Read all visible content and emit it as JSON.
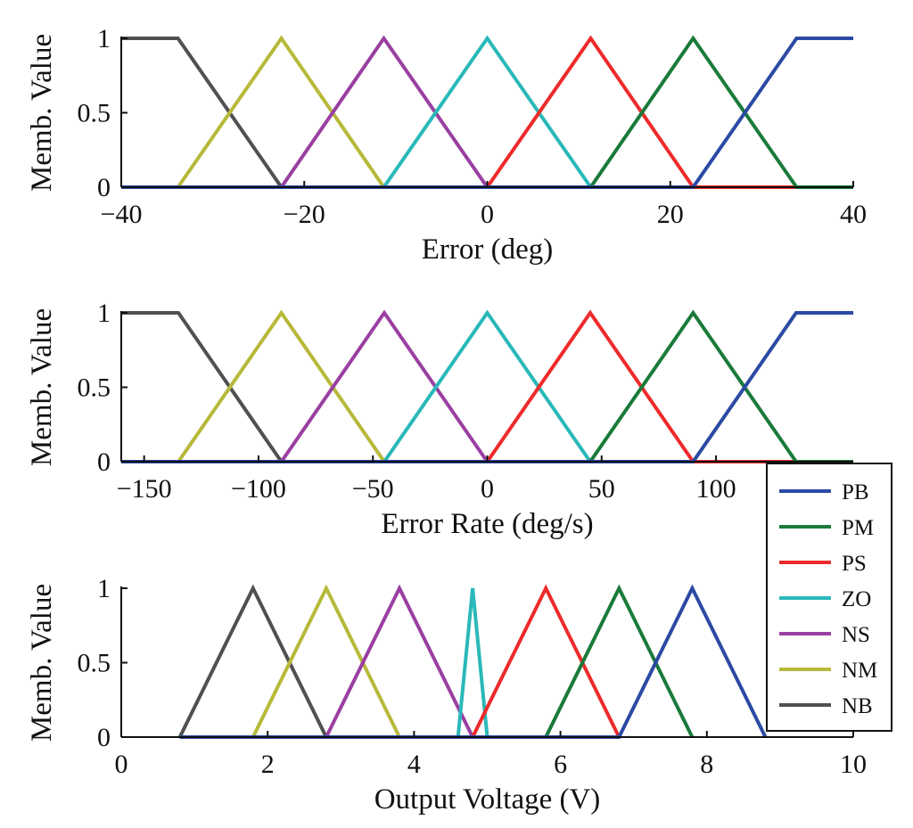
{
  "chart_data": [
    {
      "type": "line",
      "title": "",
      "xlabel": "Error (deg)",
      "ylabel": "Memb. Value",
      "xlim": [
        -40,
        40
      ],
      "ylim": [
        0,
        1
      ],
      "xticks": [
        -40,
        -20,
        0,
        20,
        40
      ],
      "xtick_labels": [
        "−40",
        "−20",
        "0",
        "20",
        "40"
      ],
      "yticks": [
        0,
        0.5,
        1
      ],
      "ytick_labels": [
        "0",
        "0.5",
        "1"
      ],
      "series": [
        {
          "name": "PB",
          "x": [
            -40,
            22.5,
            33.8,
            40
          ],
          "y": [
            0,
            0,
            1,
            1
          ]
        },
        {
          "name": "PM",
          "x": [
            -40,
            11.3,
            22.5,
            33.8,
            40
          ],
          "y": [
            0,
            0,
            1,
            0,
            0
          ]
        },
        {
          "name": "PS",
          "x": [
            -40,
            0,
            11.3,
            22.5,
            40
          ],
          "y": [
            0,
            0,
            1,
            0,
            0
          ]
        },
        {
          "name": "ZO",
          "x": [
            -40,
            -11.3,
            0,
            11.3,
            40
          ],
          "y": [
            0,
            0,
            1,
            0,
            0
          ]
        },
        {
          "name": "NS",
          "x": [
            -40,
            -22.5,
            -11.3,
            0,
            40
          ],
          "y": [
            0,
            0,
            1,
            0,
            0
          ]
        },
        {
          "name": "NM",
          "x": [
            -40,
            -33.8,
            -22.5,
            -11.3,
            40
          ],
          "y": [
            0,
            0,
            1,
            0,
            0
          ]
        },
        {
          "name": "NB",
          "x": [
            -40,
            -33.8,
            -22.5,
            40
          ],
          "y": [
            1,
            1,
            0,
            0
          ]
        }
      ]
    },
    {
      "type": "line",
      "title": "",
      "xlabel": "Error Rate (deg/s)",
      "ylabel": "Memb. Value",
      "xlim": [
        -160,
        160
      ],
      "ylim": [
        0,
        1
      ],
      "xticks": [
        -150,
        -100,
        -50,
        0,
        50,
        100
      ],
      "xtick_labels": [
        "−150",
        "−100",
        "−50",
        "0",
        "50",
        "100"
      ],
      "yticks": [
        0,
        0.5,
        1
      ],
      "ytick_labels": [
        "0",
        "0.5",
        "1"
      ],
      "series": [
        {
          "name": "PB",
          "x": [
            -160,
            90,
            135,
            160
          ],
          "y": [
            0,
            0,
            1,
            1
          ]
        },
        {
          "name": "PM",
          "x": [
            -160,
            45,
            90,
            135,
            160
          ],
          "y": [
            0,
            0,
            1,
            0,
            0
          ]
        },
        {
          "name": "PS",
          "x": [
            -160,
            0,
            45,
            90,
            160
          ],
          "y": [
            0,
            0,
            1,
            0,
            0
          ]
        },
        {
          "name": "ZO",
          "x": [
            -160,
            -45,
            0,
            45,
            160
          ],
          "y": [
            0,
            0,
            1,
            0,
            0
          ]
        },
        {
          "name": "NS",
          "x": [
            -160,
            -90,
            -45,
            0,
            160
          ],
          "y": [
            0,
            0,
            1,
            0,
            0
          ]
        },
        {
          "name": "NM",
          "x": [
            -160,
            -135,
            -90,
            -45,
            160
          ],
          "y": [
            0,
            0,
            1,
            0,
            0
          ]
        },
        {
          "name": "NB",
          "x": [
            -160,
            -135,
            -90,
            160
          ],
          "y": [
            1,
            1,
            0,
            0
          ]
        }
      ]
    },
    {
      "type": "line",
      "title": "",
      "xlabel": "Output Voltage (V)",
      "ylabel": "Memb. Value",
      "xlim": [
        0,
        10
      ],
      "ylim": [
        0,
        1
      ],
      "xticks": [
        0,
        2,
        4,
        6,
        8,
        10
      ],
      "xtick_labels": [
        "0",
        "2",
        "4",
        "6",
        "8",
        "10"
      ],
      "yticks": [
        0,
        0.5,
        1
      ],
      "ytick_labels": [
        "0",
        "0.5",
        "1"
      ],
      "series": [
        {
          "name": "PB",
          "x": [
            0.8,
            6.8,
            7.8,
            8.8
          ],
          "y": [
            0,
            0,
            1,
            0
          ]
        },
        {
          "name": "PM",
          "x": [
            0.8,
            5.8,
            6.8,
            7.8
          ],
          "y": [
            0,
            0,
            1,
            0
          ]
        },
        {
          "name": "PS",
          "x": [
            0.8,
            4.8,
            5.8,
            6.8
          ],
          "y": [
            0,
            0,
            1,
            0
          ]
        },
        {
          "name": "ZO",
          "x": [
            0.8,
            4.6,
            4.8,
            5.0
          ],
          "y": [
            0,
            0,
            1,
            0
          ]
        },
        {
          "name": "NS",
          "x": [
            0.8,
            1.8,
            2.8,
            3.8,
            4.8
          ],
          "y": [
            0,
            0,
            0,
            1,
            0
          ]
        },
        {
          "name": "NM",
          "x": [
            0.8,
            1.8,
            2.8,
            3.8
          ],
          "y": [
            0,
            0,
            1,
            0
          ]
        },
        {
          "name": "NB",
          "x": [
            0.8,
            1.8,
            2.8
          ],
          "y": [
            0,
            1,
            0
          ]
        }
      ]
    }
  ],
  "legend": {
    "placement": "right of bottom panel",
    "entries": [
      {
        "name": "PB",
        "color": "#2b4aa3"
      },
      {
        "name": "PM",
        "color": "#1a7a3a"
      },
      {
        "name": "PS",
        "color": "#ee2a2a"
      },
      {
        "name": "ZO",
        "color": "#2ab8b8"
      },
      {
        "name": "NS",
        "color": "#9a3fa2"
      },
      {
        "name": "NM",
        "color": "#b7b93a"
      },
      {
        "name": "NB",
        "color": "#505050"
      }
    ]
  }
}
